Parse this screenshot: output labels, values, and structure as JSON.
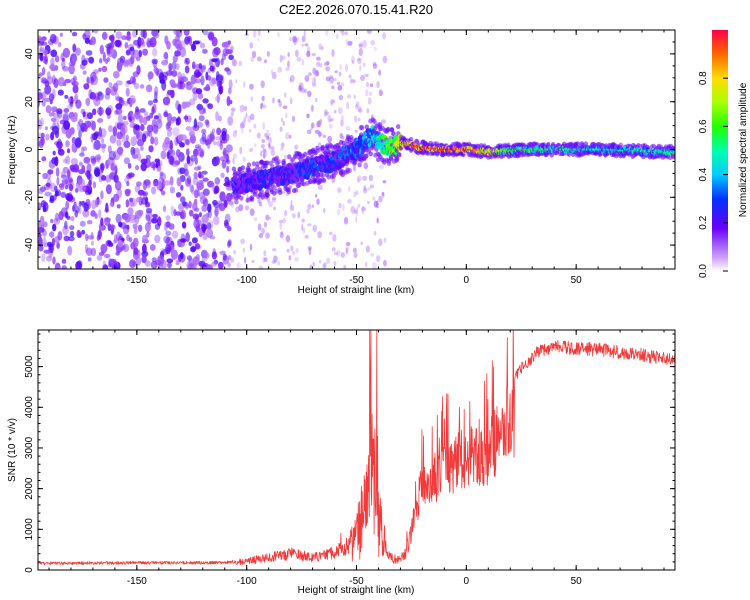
{
  "title": "C2E2.2026.070.15.41.R20",
  "chart_data": [
    {
      "type": "heatmap",
      "xlabel": "Height of straight line (km)",
      "ylabel": "Frequency (Hz)",
      "xlim": [
        -195,
        95
      ],
      "ylim": [
        -50,
        50
      ],
      "xticks": [
        -150,
        -100,
        -50,
        0,
        50
      ],
      "yticks": [
        -40,
        -20,
        0,
        20,
        40
      ],
      "colorbar": {
        "label": "Normalized spectral amplitude",
        "range": [
          0,
          1
        ],
        "ticks": [
          0.0,
          0.2,
          0.4,
          0.6,
          0.8
        ]
      },
      "ridge_center_hz": [
        {
          "x": -105,
          "y": -15
        },
        {
          "x": -90,
          "y": -12
        },
        {
          "x": -75,
          "y": -9
        },
        {
          "x": -60,
          "y": -5
        },
        {
          "x": -50,
          "y": 0
        },
        {
          "x": -43,
          "y": 6
        },
        {
          "x": -40,
          "y": 3
        },
        {
          "x": -35,
          "y": 1
        },
        {
          "x": -30,
          "y": 3
        },
        {
          "x": -22,
          "y": 1
        },
        {
          "x": -10,
          "y": 0
        },
        {
          "x": 0,
          "y": 0
        },
        {
          "x": 10,
          "y": -1
        },
        {
          "x": 30,
          "y": 0
        },
        {
          "x": 60,
          "y": 0
        },
        {
          "x": 90,
          "y": -1
        }
      ],
      "ridge_peak_amplitude": [
        {
          "x": -105,
          "a": 0.3
        },
        {
          "x": -60,
          "a": 0.35
        },
        {
          "x": -45,
          "a": 0.45
        },
        {
          "x": -35,
          "a": 0.7
        },
        {
          "x": -25,
          "a": 0.95
        },
        {
          "x": -10,
          "a": 0.98
        },
        {
          "x": 5,
          "a": 0.9
        },
        {
          "x": 20,
          "a": 0.62
        },
        {
          "x": 60,
          "a": 0.5
        },
        {
          "x": 92,
          "a": 0.55
        }
      ]
    },
    {
      "type": "line",
      "xlabel": "Height of straight line (km)",
      "ylabel": "SNR (10 * v/v)",
      "xlim": [
        -195,
        95
      ],
      "ylim": [
        0,
        5900
      ],
      "xticks": [
        -150,
        -100,
        -50,
        0,
        50
      ],
      "yticks": [
        0,
        1000,
        2000,
        3000,
        4000,
        5000
      ],
      "color": "#f23a3a",
      "envelope": [
        {
          "x": -195,
          "y": 200
        },
        {
          "x": -110,
          "y": 220
        },
        {
          "x": -100,
          "y": 300
        },
        {
          "x": -90,
          "y": 420
        },
        {
          "x": -80,
          "y": 550
        },
        {
          "x": -70,
          "y": 420
        },
        {
          "x": -60,
          "y": 600
        },
        {
          "x": -52,
          "y": 900
        },
        {
          "x": -48,
          "y": 2000
        },
        {
          "x": -44,
          "y": 3800
        },
        {
          "x": -41,
          "y": 4200
        },
        {
          "x": -38,
          "y": 900
        },
        {
          "x": -33,
          "y": 300
        },
        {
          "x": -28,
          "y": 450
        },
        {
          "x": -24,
          "y": 1700
        },
        {
          "x": -20,
          "y": 2700
        },
        {
          "x": -12,
          "y": 3100
        },
        {
          "x": -4,
          "y": 3500
        },
        {
          "x": 4,
          "y": 3800
        },
        {
          "x": 10,
          "y": 3600
        },
        {
          "x": 15,
          "y": 4300
        },
        {
          "x": 20,
          "y": 4700
        },
        {
          "x": 25,
          "y": 5100
        },
        {
          "x": 32,
          "y": 5500
        },
        {
          "x": 40,
          "y": 5650
        },
        {
          "x": 60,
          "y": 5580
        },
        {
          "x": 80,
          "y": 5450
        },
        {
          "x": 95,
          "y": 5300
        }
      ]
    }
  ]
}
